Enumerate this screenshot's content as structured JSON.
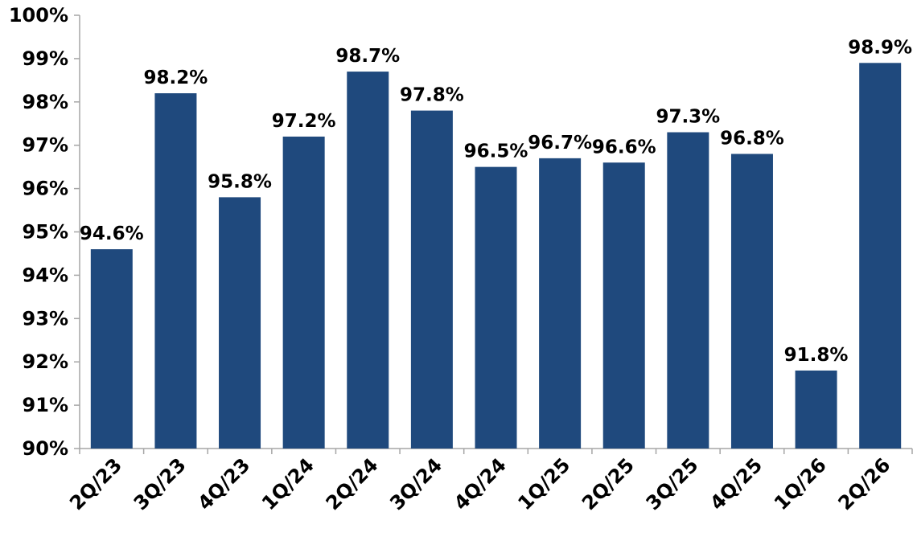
{
  "chart_data": {
    "type": "bar",
    "categories": [
      "2Q/23",
      "3Q/23",
      "4Q/23",
      "1Q/24",
      "2Q/24",
      "3Q/24",
      "4Q/24",
      "1Q/25",
      "2Q/25",
      "3Q/25",
      "4Q/25",
      "1Q/26",
      "2Q/26"
    ],
    "values": [
      94.6,
      98.2,
      95.8,
      97.2,
      98.7,
      97.8,
      96.5,
      96.7,
      96.6,
      97.3,
      96.8,
      91.8,
      98.9
    ],
    "data_labels": [
      "94.6%",
      "98.2%",
      "95.8%",
      "97.2%",
      "98.7%",
      "97.8%",
      "96.5%",
      "96.7%",
      "96.6%",
      "97.3%",
      "96.8%",
      "91.8%",
      "98.9%"
    ],
    "ylim": [
      90,
      100
    ],
    "yticks": [
      90,
      91,
      92,
      93,
      94,
      95,
      96,
      97,
      98,
      99,
      100
    ],
    "ytick_labels": [
      "90%",
      "91%",
      "92%",
      "93%",
      "94%",
      "95%",
      "96%",
      "97%",
      "98%",
      "99%",
      "100%"
    ],
    "title": "",
    "xlabel": "",
    "ylabel": "",
    "grid": false,
    "legend": "none",
    "bar_color": "#1f497d"
  }
}
